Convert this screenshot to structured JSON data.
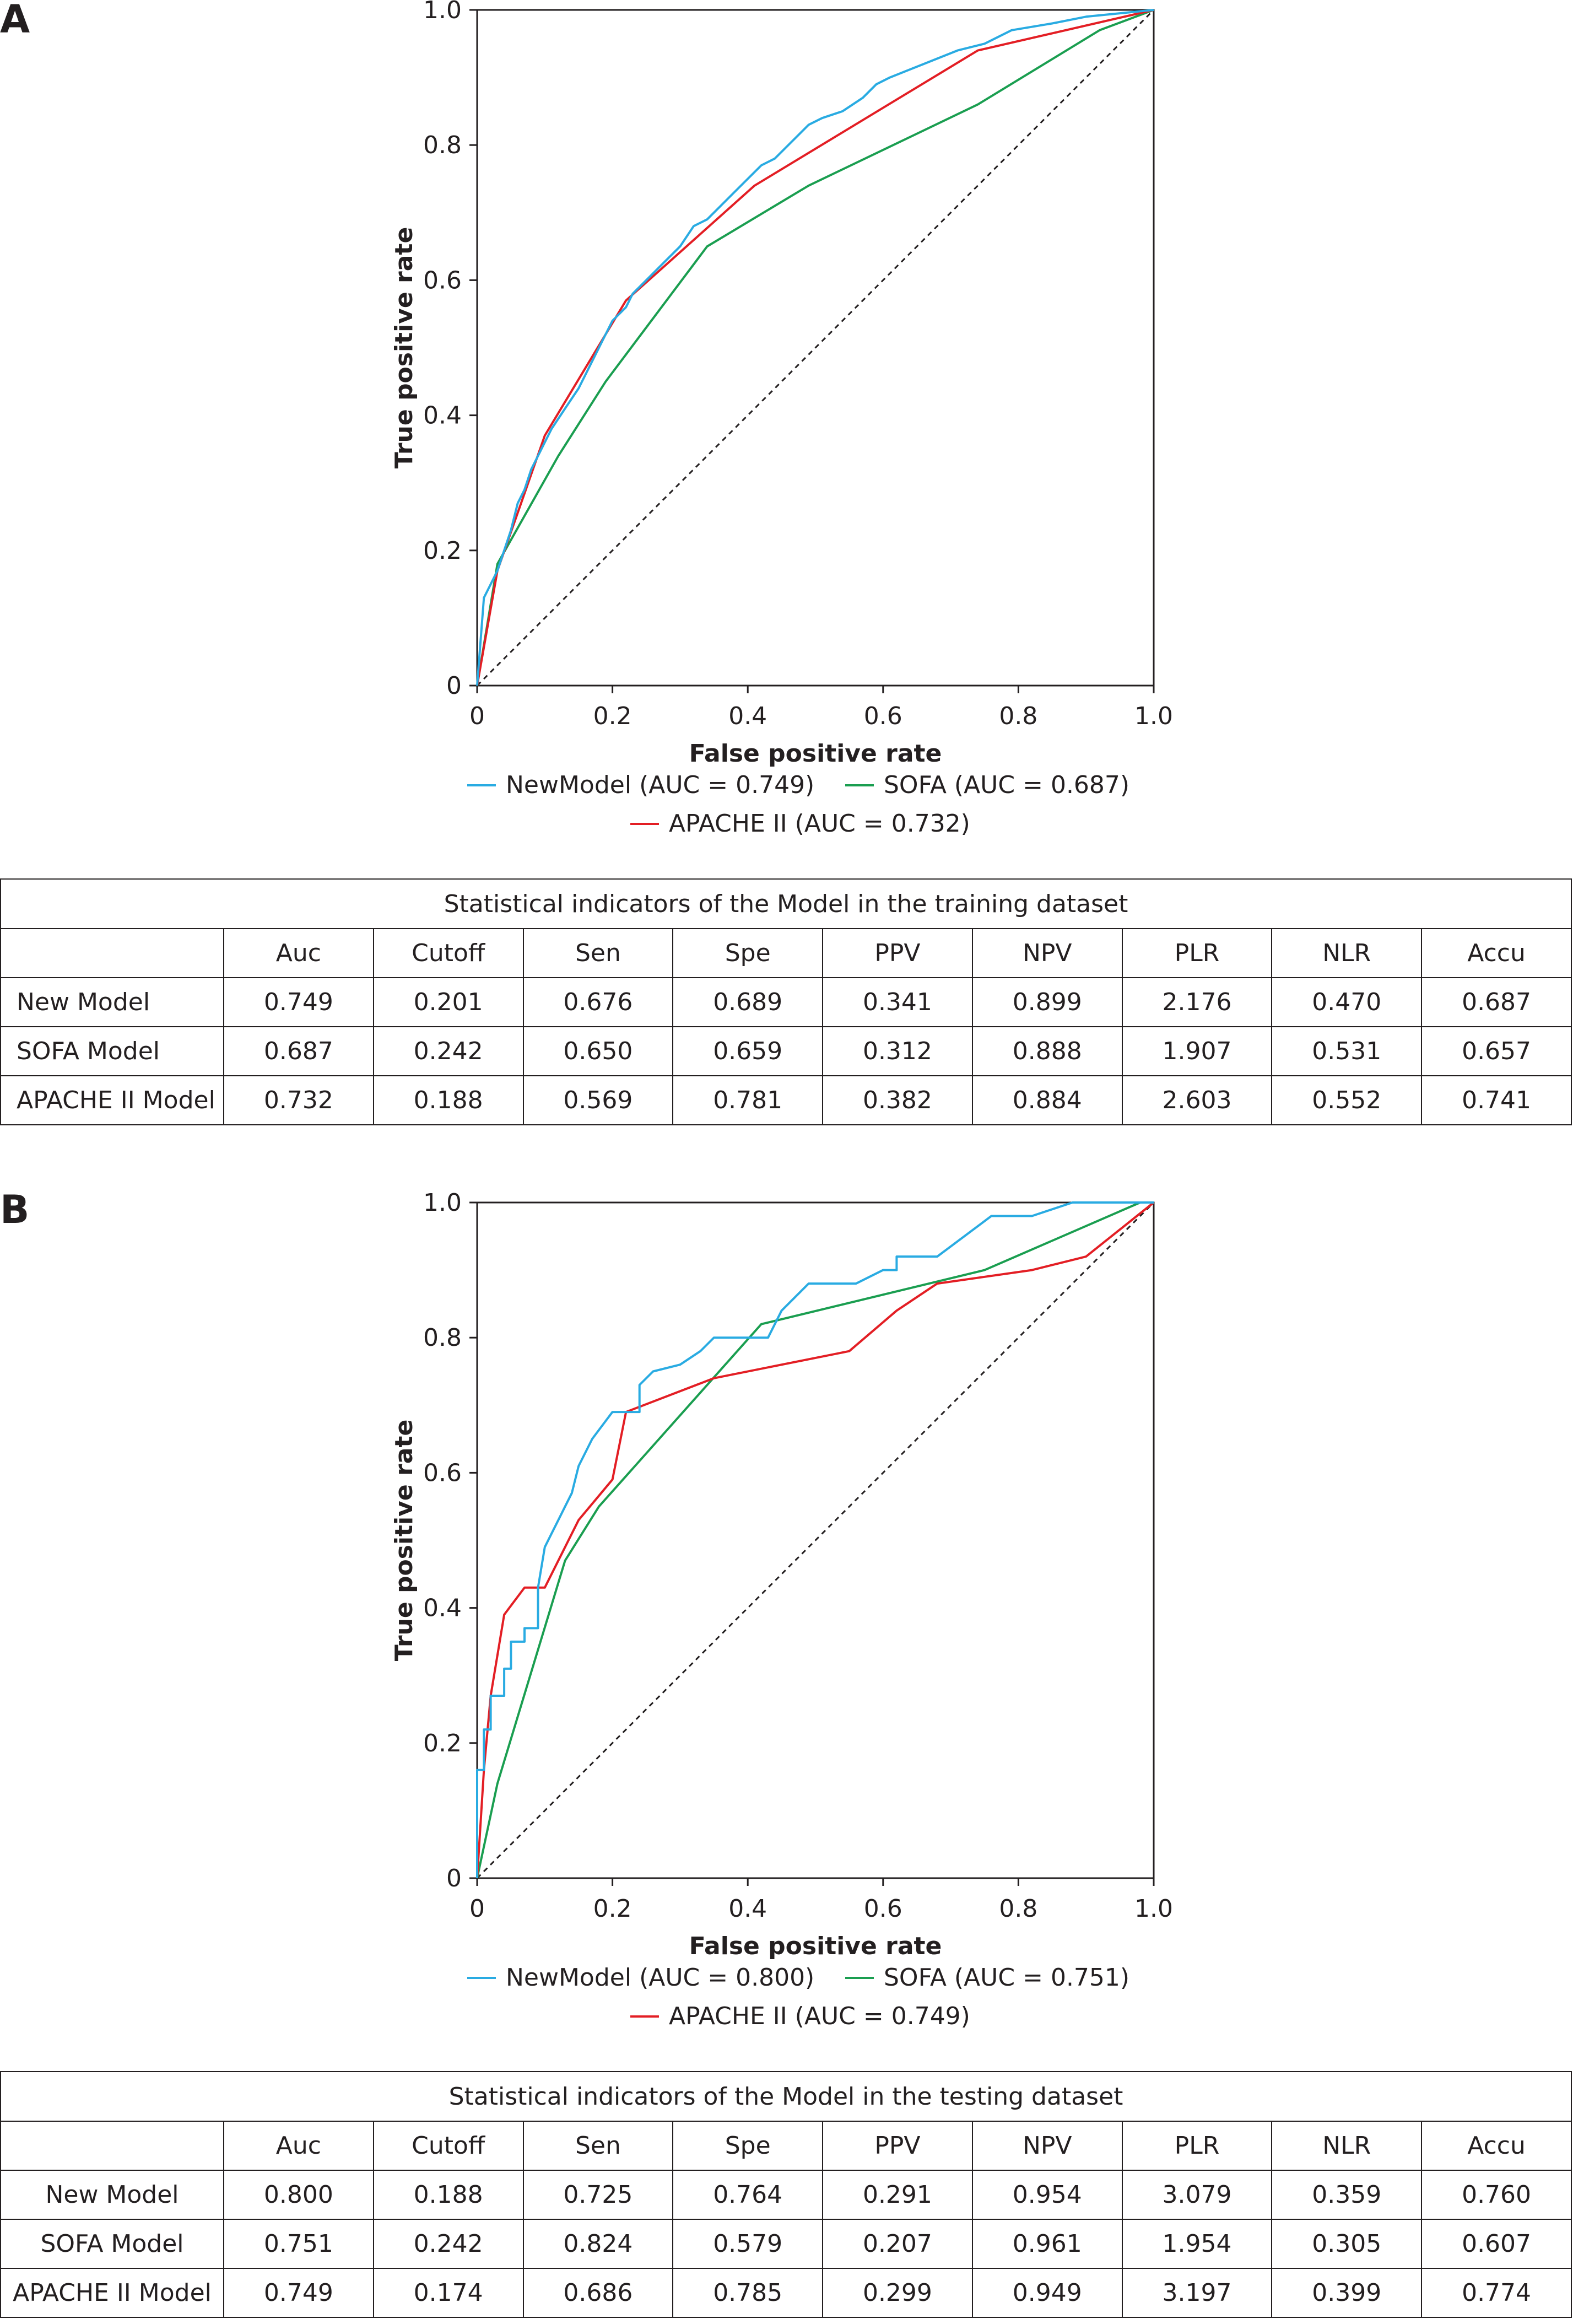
{
  "panels": [
    {
      "letter": "A",
      "chart": {
        "xlabel": "False positive rate",
        "ylabel": "True positive rate",
        "x_ticks": [
          "0",
          "0.2",
          "0.4",
          "0.6",
          "0.8",
          "1.0"
        ],
        "y_ticks": [
          "0",
          "0.2",
          "0.4",
          "0.6",
          "0.8",
          "1.0"
        ],
        "legend_labels": [
          "NewModel (AUC = 0.749)",
          "SOFA (AUC = 0.687)",
          "APACHE II (AUC = 0.732)"
        ]
      },
      "table": {
        "caption": "Statistical indicators of the Model in the training dataset",
        "headers": [
          "",
          "Auc",
          "Cutoff",
          "Sen",
          "Spe",
          "PPV",
          "NPV",
          "PLR",
          "NLR",
          "Accu"
        ],
        "rows": [
          [
            "New Model",
            "0.749",
            "0.201",
            "0.676",
            "0.689",
            "0.341",
            "0.899",
            "2.176",
            "0.470",
            "0.687"
          ],
          [
            "SOFA Model",
            "0.687",
            "0.242",
            "0.650",
            "0.659",
            "0.312",
            "0.888",
            "1.907",
            "0.531",
            "0.657"
          ],
          [
            "APACHE II Model",
            "0.732",
            "0.188",
            "0.569",
            "0.781",
            "0.382",
            "0.884",
            "2.603",
            "0.552",
            "0.741"
          ]
        ]
      }
    },
    {
      "letter": "B",
      "chart": {
        "xlabel": "False positive rate",
        "ylabel": "True positive rate",
        "x_ticks": [
          "0",
          "0.2",
          "0.4",
          "0.6",
          "0.8",
          "1.0"
        ],
        "y_ticks": [
          "0",
          "0.2",
          "0.4",
          "0.6",
          "0.8",
          "1.0"
        ],
        "legend_labels": [
          "NewModel (AUC = 0.800)",
          "SOFA (AUC = 0.751)",
          "APACHE II (AUC = 0.749)"
        ]
      },
      "table": {
        "caption": "Statistical indicators of the Model in the testing dataset",
        "headers": [
          "",
          "Auc",
          "Cutoff",
          "Sen",
          "Spe",
          "PPV",
          "NPV",
          "PLR",
          "NLR",
          "Accu"
        ],
        "rows": [
          [
            "New Model",
            "0.800",
            "0.188",
            "0.725",
            "0.764",
            "0.291",
            "0.954",
            "3.079",
            "0.359",
            "0.760"
          ],
          [
            "SOFA Model",
            "0.751",
            "0.242",
            "0.824",
            "0.579",
            "0.207",
            "0.961",
            "1.954",
            "0.305",
            "0.607"
          ],
          [
            "APACHE II Model",
            "0.749",
            "0.174",
            "0.686",
            "0.785",
            "0.299",
            "0.949",
            "3.197",
            "0.399",
            "0.774"
          ]
        ]
      }
    }
  ],
  "chart_data": [
    {
      "type": "line",
      "xlabel": "False positive rate",
      "ylabel": "True positive rate",
      "xlim": [
        0,
        1
      ],
      "ylim": [
        0,
        1
      ],
      "grid": false,
      "legend_position": "bottom",
      "reference_line": {
        "style": "dashed",
        "color": "#231f20",
        "points": [
          [
            0,
            0
          ],
          [
            1,
            1
          ]
        ]
      },
      "series": [
        {
          "name": "NewModel (AUC = 0.749)",
          "color": "#29abe2",
          "points": [
            [
              0,
              0
            ],
            [
              0.01,
              0.13
            ],
            [
              0.02,
              0.15
            ],
            [
              0.03,
              0.17
            ],
            [
              0.04,
              0.2
            ],
            [
              0.05,
              0.23
            ],
            [
              0.06,
              0.27
            ],
            [
              0.07,
              0.29
            ],
            [
              0.08,
              0.32
            ],
            [
              0.1,
              0.36
            ],
            [
              0.11,
              0.38
            ],
            [
              0.13,
              0.41
            ],
            [
              0.15,
              0.44
            ],
            [
              0.17,
              0.48
            ],
            [
              0.19,
              0.52
            ],
            [
              0.2,
              0.54
            ],
            [
              0.22,
              0.56
            ],
            [
              0.23,
              0.58
            ],
            [
              0.25,
              0.6
            ],
            [
              0.28,
              0.63
            ],
            [
              0.3,
              0.65
            ],
            [
              0.32,
              0.68
            ],
            [
              0.34,
              0.69
            ],
            [
              0.36,
              0.71
            ],
            [
              0.38,
              0.73
            ],
            [
              0.4,
              0.75
            ],
            [
              0.42,
              0.77
            ],
            [
              0.44,
              0.78
            ],
            [
              0.47,
              0.81
            ],
            [
              0.49,
              0.83
            ],
            [
              0.51,
              0.84
            ],
            [
              0.54,
              0.85
            ],
            [
              0.57,
              0.87
            ],
            [
              0.59,
              0.89
            ],
            [
              0.61,
              0.9
            ],
            [
              0.66,
              0.92
            ],
            [
              0.71,
              0.94
            ],
            [
              0.75,
              0.95
            ],
            [
              0.79,
              0.97
            ],
            [
              0.85,
              0.98
            ],
            [
              0.9,
              0.99
            ],
            [
              0.95,
              0.995
            ],
            [
              1,
              1
            ]
          ]
        },
        {
          "name": "SOFA (AUC = 0.687)",
          "color": "#1a9e50",
          "points": [
            [
              0,
              0
            ],
            [
              0.03,
              0.18
            ],
            [
              0.12,
              0.34
            ],
            [
              0.19,
              0.45
            ],
            [
              0.34,
              0.65
            ],
            [
              0.49,
              0.74
            ],
            [
              0.74,
              0.86
            ],
            [
              0.92,
              0.97
            ],
            [
              1,
              1
            ]
          ]
        },
        {
          "name": "APACHE II (AUC = 0.732)",
          "color": "#e31e24",
          "points": [
            [
              0,
              0
            ],
            [
              0.03,
              0.17
            ],
            [
              0.1,
              0.37
            ],
            [
              0.22,
              0.57
            ],
            [
              0.41,
              0.74
            ],
            [
              0.74,
              0.94
            ],
            [
              1,
              1
            ]
          ]
        }
      ]
    },
    {
      "type": "line",
      "xlabel": "False positive rate",
      "ylabel": "True positive rate",
      "xlim": [
        0,
        1
      ],
      "ylim": [
        0,
        1
      ],
      "grid": false,
      "legend_position": "bottom",
      "reference_line": {
        "style": "dashed",
        "color": "#231f20",
        "points": [
          [
            0,
            0
          ],
          [
            1,
            1
          ]
        ]
      },
      "series": [
        {
          "name": "NewModel (AUC = 0.800)",
          "color": "#29abe2",
          "points": [
            [
              0,
              0
            ],
            [
              0,
              0.16
            ],
            [
              0.01,
              0.16
            ],
            [
              0.01,
              0.22
            ],
            [
              0.02,
              0.22
            ],
            [
              0.02,
              0.27
            ],
            [
              0.04,
              0.27
            ],
            [
              0.04,
              0.31
            ],
            [
              0.05,
              0.31
            ],
            [
              0.05,
              0.35
            ],
            [
              0.07,
              0.35
            ],
            [
              0.07,
              0.37
            ],
            [
              0.09,
              0.37
            ],
            [
              0.09,
              0.43
            ],
            [
              0.1,
              0.49
            ],
            [
              0.11,
              0.51
            ],
            [
              0.12,
              0.53
            ],
            [
              0.13,
              0.55
            ],
            [
              0.14,
              0.57
            ],
            [
              0.15,
              0.61
            ],
            [
              0.17,
              0.65
            ],
            [
              0.2,
              0.69
            ],
            [
              0.2,
              0.69
            ],
            [
              0.24,
              0.69
            ],
            [
              0.24,
              0.73
            ],
            [
              0.26,
              0.75
            ],
            [
              0.3,
              0.76
            ],
            [
              0.33,
              0.78
            ],
            [
              0.35,
              0.8
            ],
            [
              0.43,
              0.8
            ],
            [
              0.45,
              0.84
            ],
            [
              0.47,
              0.86
            ],
            [
              0.49,
              0.88
            ],
            [
              0.56,
              0.88
            ],
            [
              0.6,
              0.9
            ],
            [
              0.62,
              0.9
            ],
            [
              0.62,
              0.92
            ],
            [
              0.68,
              0.92
            ],
            [
              0.76,
              0.98
            ],
            [
              0.82,
              0.98
            ],
            [
              0.88,
              1
            ],
            [
              1,
              1
            ]
          ]
        },
        {
          "name": "SOFA (AUC = 0.751)",
          "color": "#1a9e50",
          "points": [
            [
              0,
              0
            ],
            [
              0.03,
              0.14
            ],
            [
              0.13,
              0.47
            ],
            [
              0.18,
              0.55
            ],
            [
              0.42,
              0.82
            ],
            [
              0.75,
              0.9
            ],
            [
              0.98,
              1
            ],
            [
              1,
              1
            ]
          ]
        },
        {
          "name": "APACHE II (AUC = 0.749)",
          "color": "#e31e24",
          "points": [
            [
              0,
              0
            ],
            [
              0.01,
              0.16
            ],
            [
              0.02,
              0.27
            ],
            [
              0.04,
              0.39
            ],
            [
              0.07,
              0.43
            ],
            [
              0.1,
              0.43
            ],
            [
              0.15,
              0.53
            ],
            [
              0.2,
              0.59
            ],
            [
              0.22,
              0.69
            ],
            [
              0.35,
              0.74
            ],
            [
              0.55,
              0.78
            ],
            [
              0.62,
              0.84
            ],
            [
              0.68,
              0.88
            ],
            [
              0.82,
              0.9
            ],
            [
              0.9,
              0.92
            ],
            [
              1,
              1
            ]
          ]
        }
      ]
    }
  ]
}
